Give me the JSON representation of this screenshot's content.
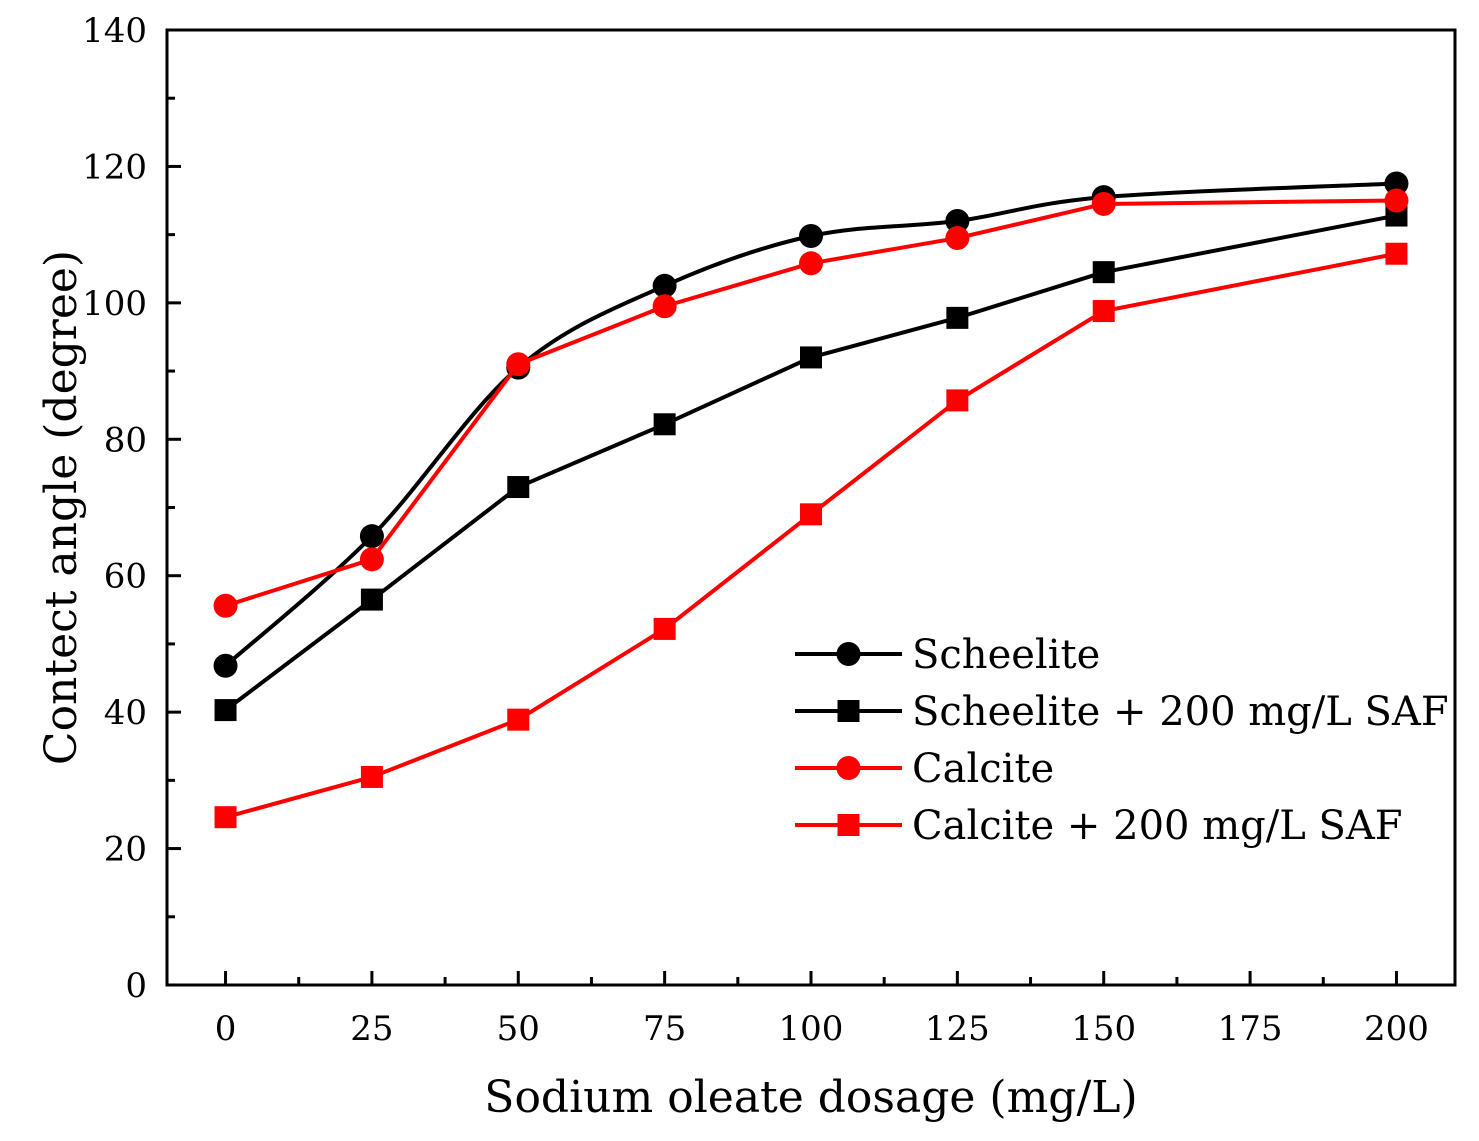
{
  "chart_data": {
    "type": "line",
    "title": "",
    "xlabel": "Sodium oleate dosage (mg/L)",
    "ylabel": "Contect angle (degree)",
    "xlim": [
      -10,
      210
    ],
    "ylim": [
      0,
      140
    ],
    "xticks": [
      "0",
      "25",
      "50",
      "75",
      "100",
      "125",
      "150",
      "175",
      "200"
    ],
    "yticks": [
      "0",
      "20",
      "40",
      "60",
      "80",
      "100",
      "120",
      "140"
    ],
    "x": [
      0,
      25,
      50,
      75,
      100,
      125,
      150,
      200
    ],
    "legend_position": "lower-right",
    "series": [
      {
        "name": "Scheelite",
        "color": "#000000",
        "marker": "circle",
        "smooth": true,
        "values": [
          46.8,
          65.8,
          90.5,
          102.5,
          109.8,
          112.0,
          115.5,
          117.5
        ]
      },
      {
        "name": "Scheelite + 200 mg/L SAF",
        "color": "#000000",
        "marker": "square",
        "smooth": false,
        "values": [
          40.3,
          56.5,
          73.0,
          82.2,
          92.0,
          97.8,
          104.5,
          112.8
        ]
      },
      {
        "name": "Calcite",
        "color": "#ff0000",
        "marker": "circle",
        "smooth": false,
        "values": [
          55.6,
          62.4,
          91.0,
          99.5,
          105.8,
          109.5,
          114.5,
          115.0
        ]
      },
      {
        "name": "Calcite + 200 mg/L SAF",
        "color": "#ff0000",
        "marker": "square",
        "smooth": false,
        "values": [
          24.6,
          30.5,
          38.9,
          52.2,
          69.0,
          85.7,
          98.8,
          107.2
        ]
      }
    ]
  }
}
